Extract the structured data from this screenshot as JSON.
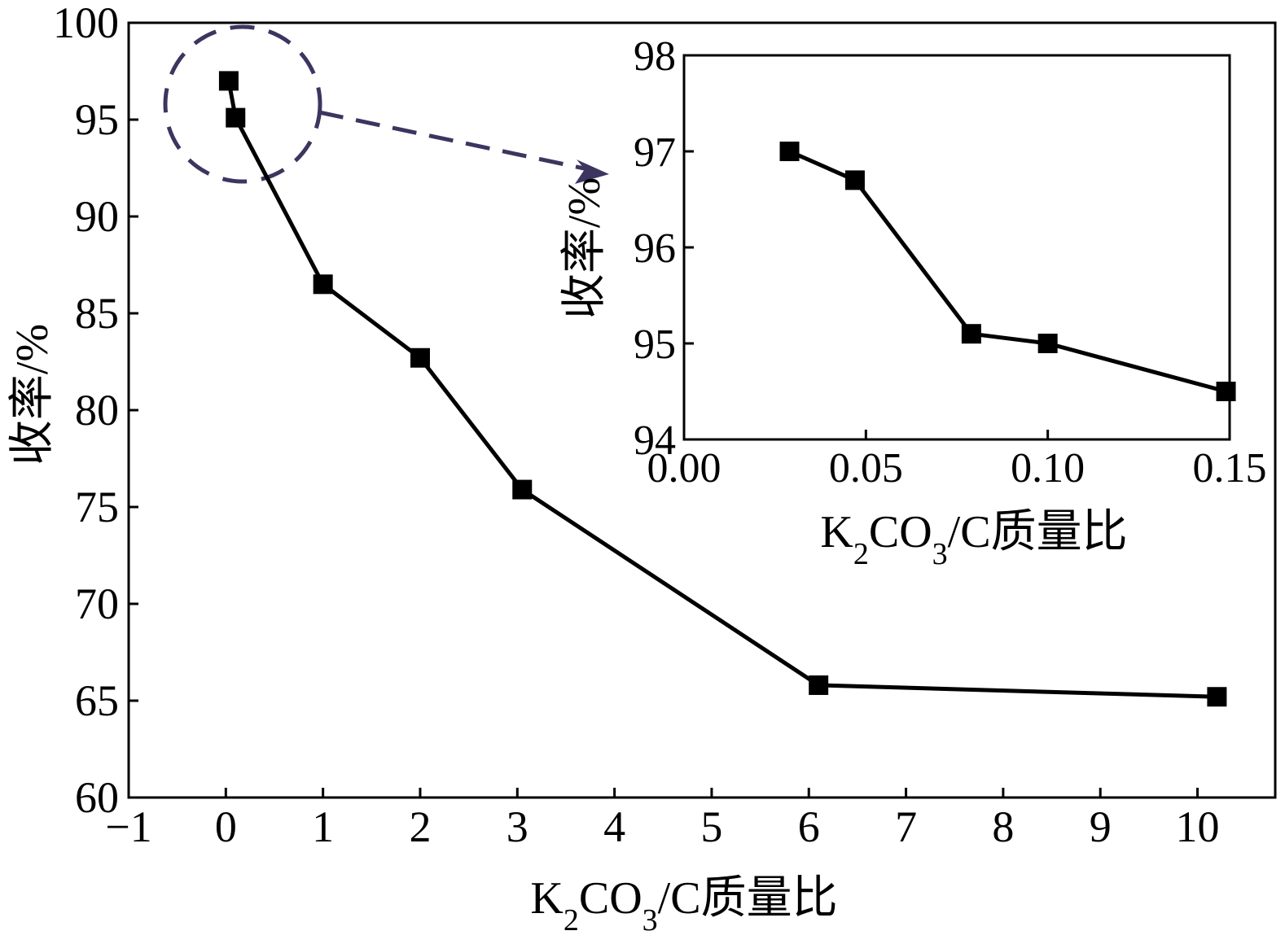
{
  "chart_data": [
    {
      "type": "line",
      "xlabel": "K2CO3/C质量比",
      "ylabel": "收率/%",
      "xlim": [
        -1,
        10.8
      ],
      "ylim": [
        60,
        100
      ],
      "xticks": [
        -1,
        0,
        1,
        2,
        3,
        4,
        5,
        6,
        7,
        8,
        9,
        10
      ],
      "xtick_labels": [
        "−1",
        "0",
        "1",
        "2",
        "3",
        "4",
        "5",
        "6",
        "7",
        "8",
        "9",
        "10"
      ],
      "yticks": [
        60,
        65,
        70,
        75,
        80,
        85,
        90,
        95,
        100
      ],
      "ytick_labels": [
        "60",
        "65",
        "70",
        "75",
        "80",
        "85",
        "90",
        "95",
        "100"
      ],
      "marker": "square",
      "series": [
        {
          "x": [
            0.03,
            0.1,
            1.0,
            2.0,
            3.05,
            6.1,
            10.2
          ],
          "y": [
            97.0,
            95.1,
            86.5,
            82.7,
            75.9,
            65.8,
            65.2
          ]
        }
      ],
      "annotation": "dashed-circle-with-arrow-to-inset",
      "annotation_color": "#3d3560"
    },
    {
      "type": "line",
      "role": "inset",
      "xlabel": "K2CO3/C质量比",
      "ylabel": "收率/%",
      "xlim": [
        0.0,
        0.15
      ],
      "ylim": [
        94,
        98
      ],
      "xticks": [
        0.0,
        0.05,
        0.1,
        0.15
      ],
      "xtick_labels": [
        "0.00",
        "0.05",
        "0.10",
        "0.15"
      ],
      "yticks": [
        94,
        95,
        96,
        97,
        98
      ],
      "ytick_labels": [
        "94",
        "95",
        "96",
        "97",
        "98"
      ],
      "marker": "square",
      "series": [
        {
          "x": [
            0.029,
            0.047,
            0.079,
            0.1,
            0.149
          ],
          "y": [
            97.0,
            96.7,
            95.1,
            95.0,
            94.5
          ]
        }
      ]
    }
  ]
}
